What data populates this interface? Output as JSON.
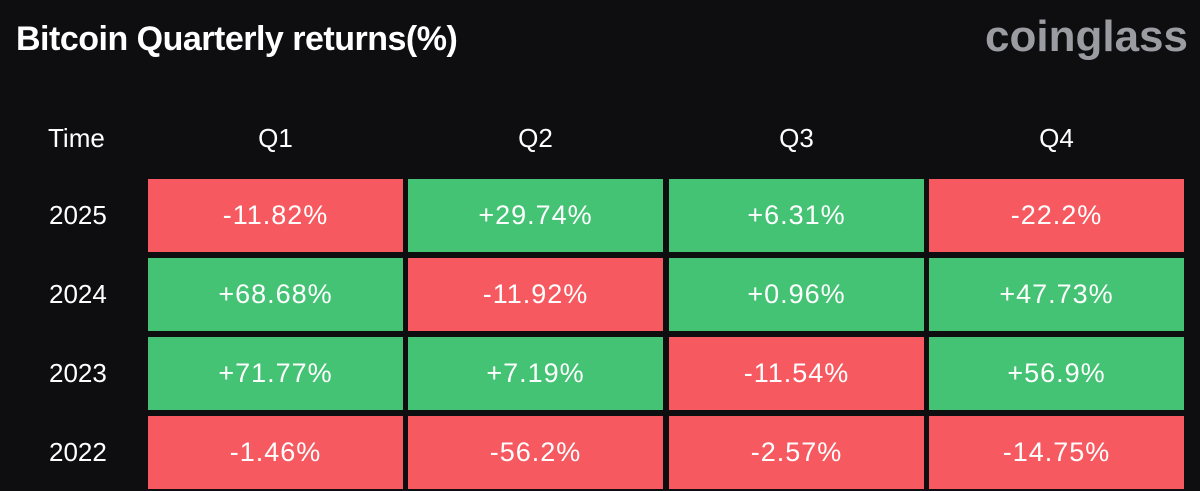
{
  "title": "Bitcoin Quarterly returns(%)",
  "brand": "coinglass",
  "colors": {
    "background": "#0e0e11",
    "positive": "#43c373",
    "negative": "#f65a60",
    "brand": "#9a9ca1"
  },
  "chart_data": {
    "type": "table",
    "title": "Bitcoin Quarterly returns(%)",
    "columns": [
      "Time",
      "Q1",
      "Q2",
      "Q3",
      "Q4"
    ],
    "rows": [
      {
        "label": "2025",
        "values": [
          "-11.82%",
          "+29.74%",
          "+6.31%",
          "-22.2%"
        ]
      },
      {
        "label": "2024",
        "values": [
          "+68.68%",
          "-11.92%",
          "+0.96%",
          "+47.73%"
        ]
      },
      {
        "label": "2023",
        "values": [
          "+71.77%",
          "+7.19%",
          "-11.54%",
          "+56.9%"
        ]
      },
      {
        "label": "2022",
        "values": [
          "-1.46%",
          "-56.2%",
          "-2.57%",
          "-14.75%"
        ]
      }
    ]
  }
}
